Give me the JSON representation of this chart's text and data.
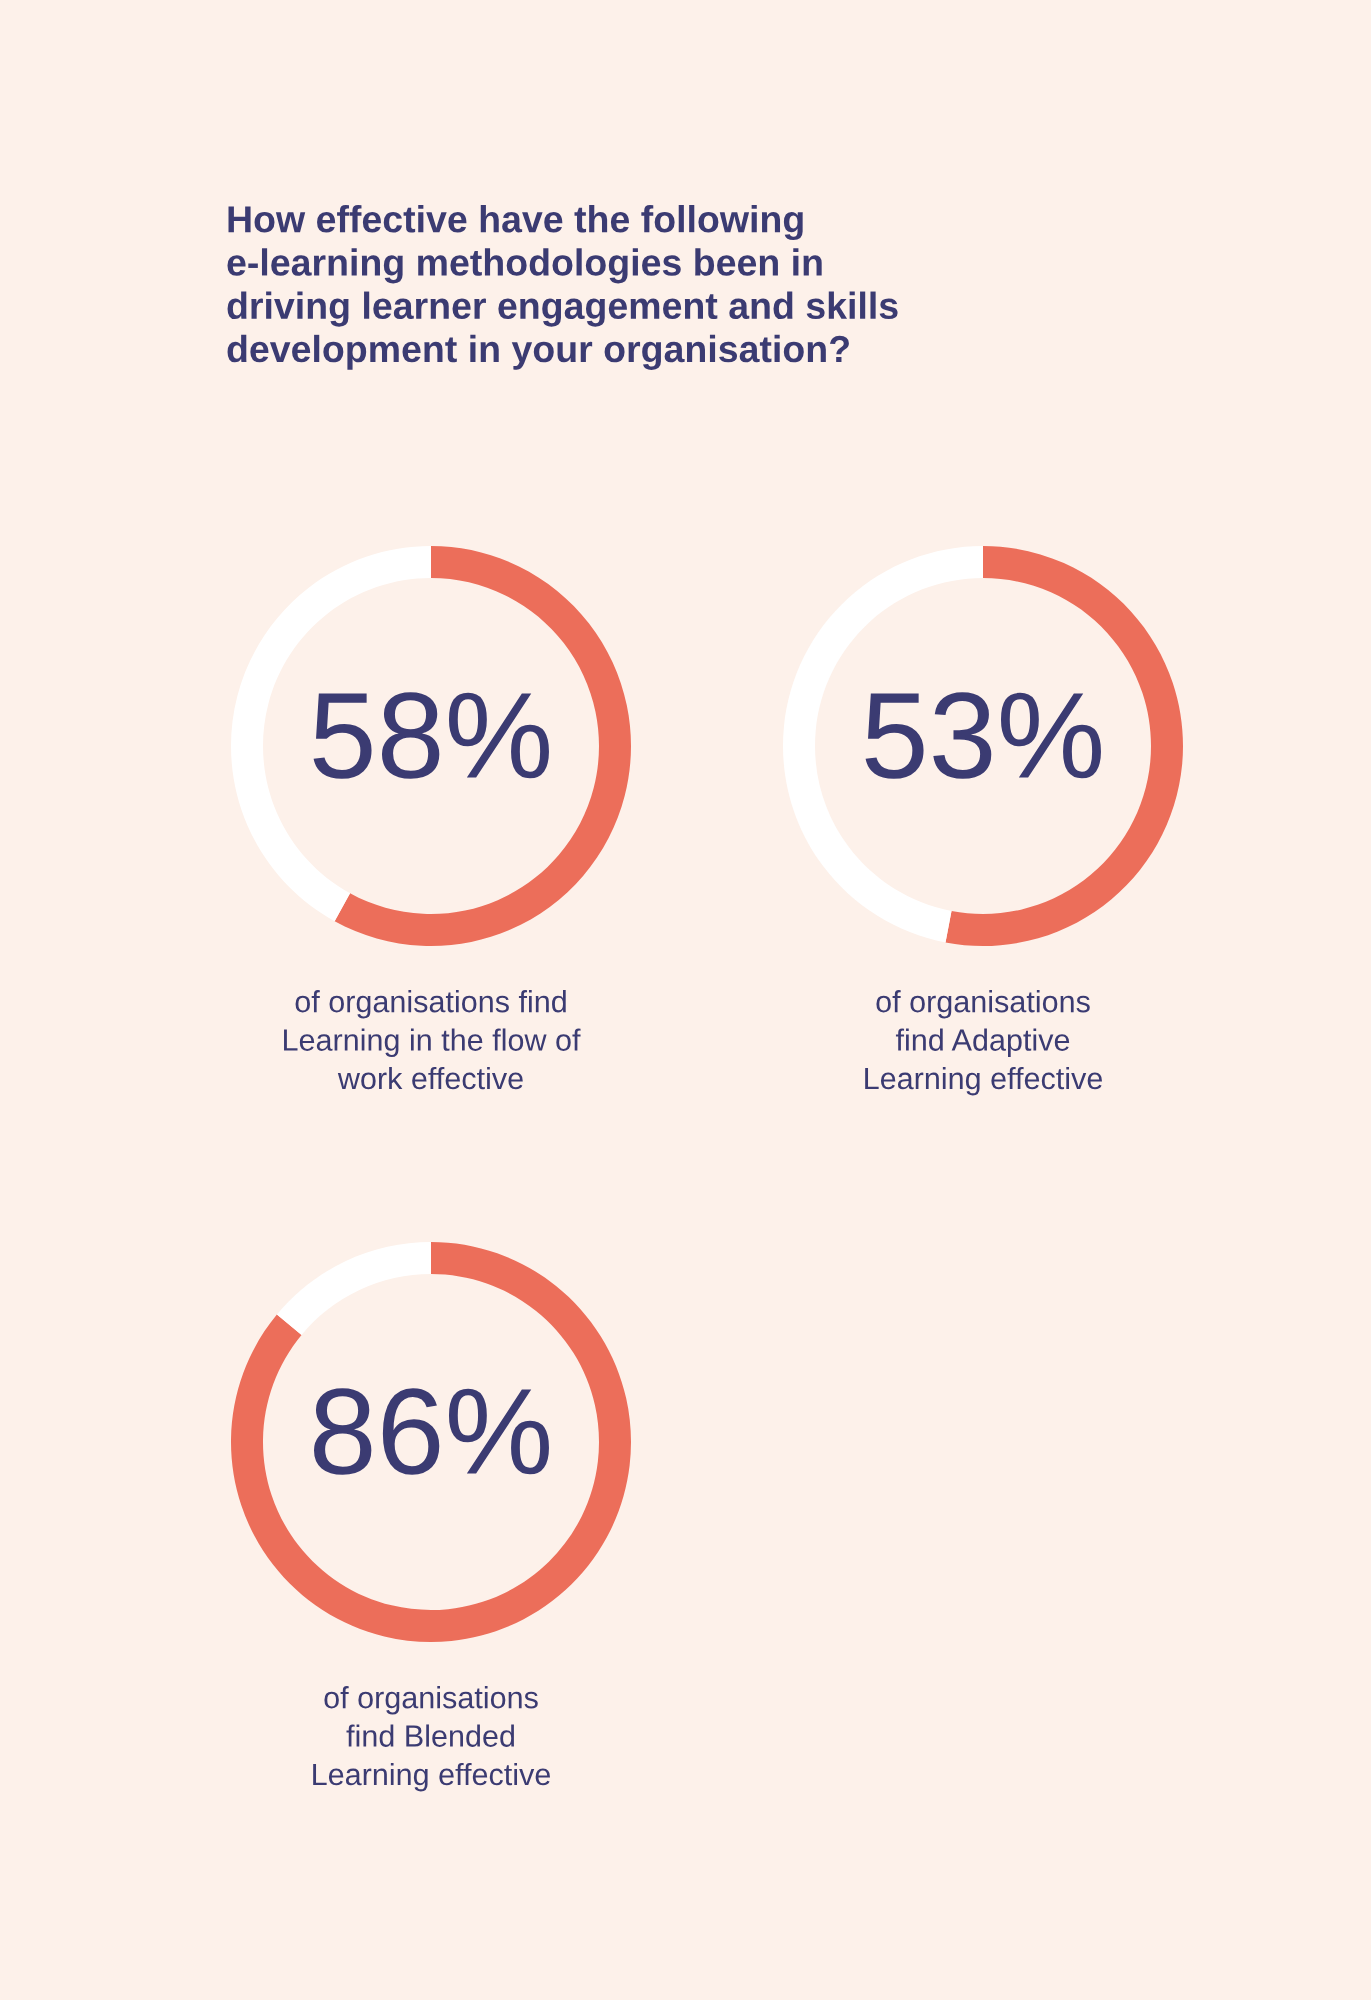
{
  "chart_data": [
    {
      "type": "donut",
      "title": "How effective have the following\ne-learning methodologies been in\ndriving learner engagement and skills\ndevelopment in your organisation?",
      "categories": [
        null,
        null
      ],
      "values": [
        58,
        42
      ],
      "colors": [
        "#ec6e5a",
        "#ffffff"
      ],
      "value_labels": [
        "58%",
        null
      ],
      "annotations": [
        "of organisations find\nLearning in the flow of\nwork effective"
      ]
    },
    {
      "type": "donut",
      "categories": [
        null,
        null
      ],
      "values": [
        53,
        47
      ],
      "colors": [
        "#ec6e5a",
        "#ffffff"
      ],
      "value_labels": [
        "53%",
        null
      ],
      "annotations": [
        "of organisations\nfind Adaptive\nLearning effective"
      ]
    },
    {
      "type": "donut",
      "categories": [
        null,
        null
      ],
      "values": [
        86,
        14
      ],
      "colors": [
        "#ec6e5a",
        "#ffffff"
      ],
      "value_labels": [
        "86%",
        null
      ],
      "annotations": [
        "of organisations\nfind Blended\nLearning effective"
      ]
    }
  ]
}
